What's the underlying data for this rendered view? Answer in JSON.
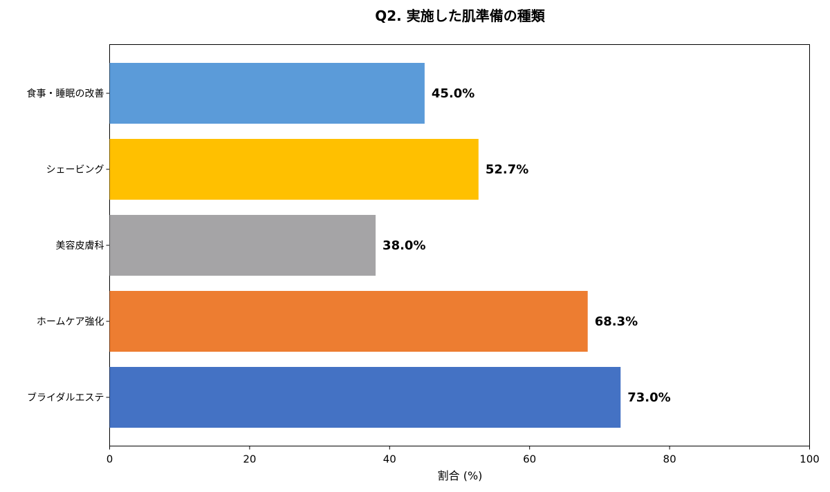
{
  "chart_data": {
    "type": "bar",
    "orientation": "horizontal",
    "title": "Q2. 実施した肌準備の種類",
    "xlabel": "割合 (%)",
    "ylabel": "",
    "xlim": [
      0,
      100
    ],
    "xticks": [
      "0",
      "20",
      "40",
      "60",
      "80",
      "100"
    ],
    "grid": false,
    "categories": [
      "食事・睡眠の改善",
      "シェービング",
      "美容皮膚科",
      "ホームケア強化",
      "ブライダルエステ"
    ],
    "values": [
      45.0,
      52.7,
      38.0,
      68.3,
      73.0
    ],
    "value_labels": [
      "45.0%",
      "52.7%",
      "38.0%",
      "68.3%",
      "73.0%"
    ],
    "colors": [
      "#5b9bd9",
      "#ffc000",
      "#a5a4a6",
      "#ed7d31",
      "#4472c4"
    ]
  }
}
